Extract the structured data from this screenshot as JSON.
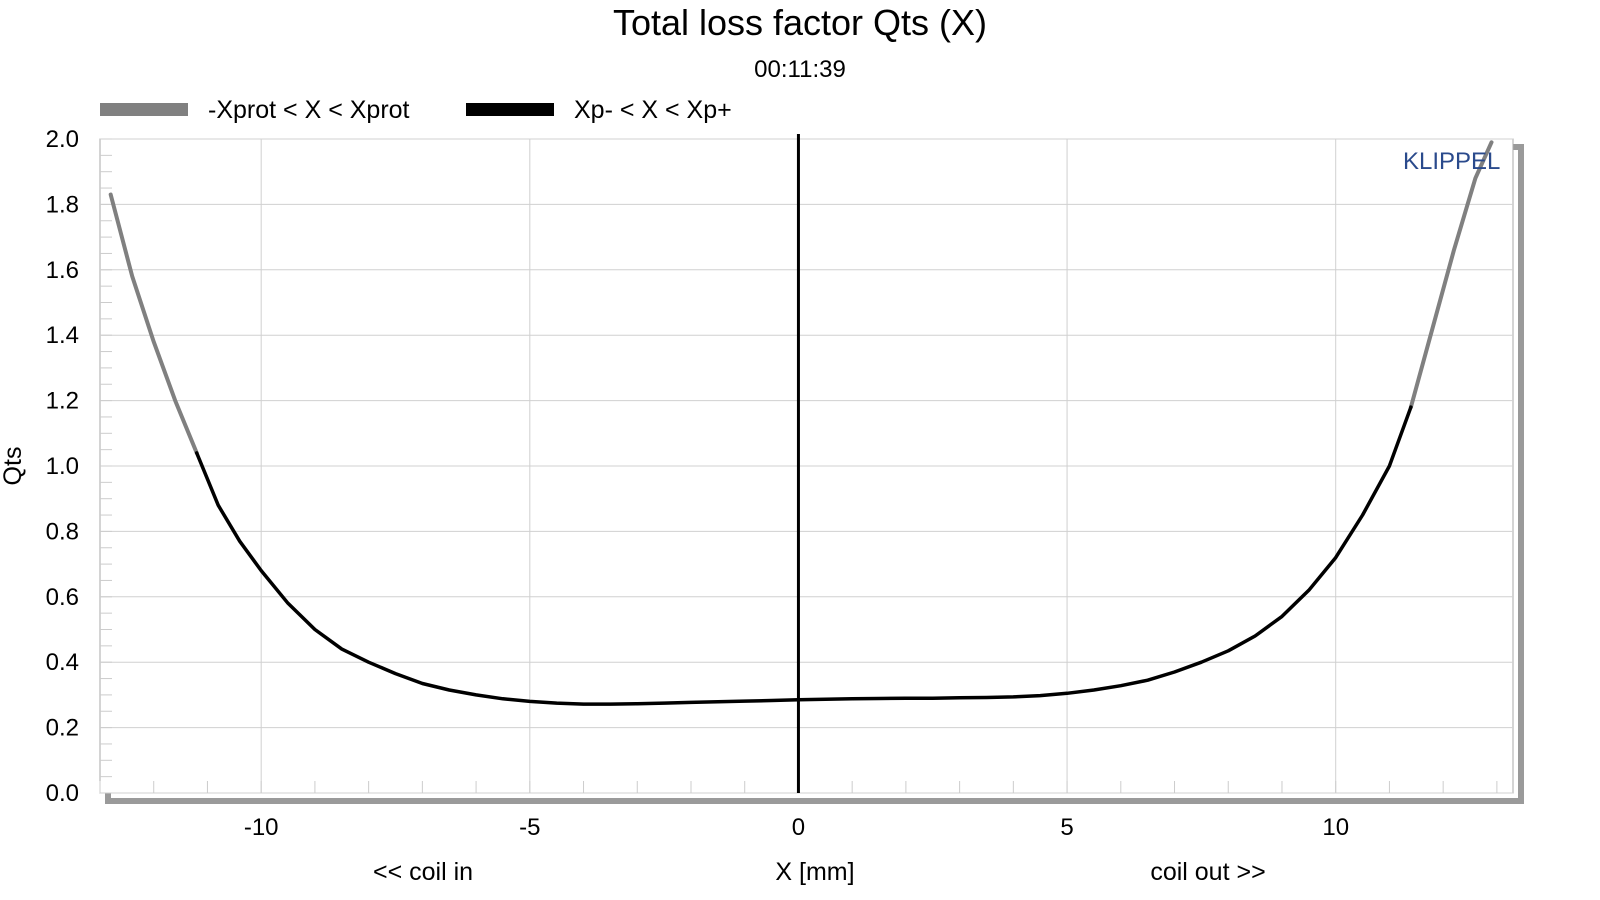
{
  "chart_data": {
    "type": "line",
    "title": "Total loss factor Qts (X)",
    "subtitle": "00:11:39",
    "xlabel": "X [mm]",
    "ylabel": "Qts",
    "x_annotation_left": "<< coil in",
    "x_annotation_right": "coil out >>",
    "watermark": "KLIPPEL",
    "xlim": [
      -13,
      13.3
    ],
    "ylim": [
      0,
      2
    ],
    "xticks": [
      -10,
      -5,
      0,
      5,
      10
    ],
    "yticks": [
      0.0,
      0.2,
      0.4,
      0.6,
      0.8,
      1.0,
      1.2,
      1.4,
      1.6,
      1.8,
      2.0
    ],
    "grid": true,
    "legend_position": "top-left",
    "zero_line_x": 0,
    "series": [
      {
        "name": "-Xprot < X < Xprot",
        "color": "#808080",
        "x": [
          -12.8,
          -12.4,
          -12.0,
          -11.6,
          -11.2,
          11.4,
          11.8,
          12.2,
          12.6,
          12.9
        ],
        "y": [
          1.83,
          1.58,
          1.38,
          1.2,
          1.04,
          1.18,
          1.42,
          1.66,
          1.88,
          1.99
        ]
      },
      {
        "name": "Xp- < X < Xp+",
        "color": "#000000",
        "x": [
          -11.2,
          -10.8,
          -10.4,
          -10.0,
          -9.5,
          -9.0,
          -8.5,
          -8.0,
          -7.5,
          -7.0,
          -6.5,
          -6.0,
          -5.5,
          -5.0,
          -4.5,
          -4.0,
          -3.5,
          -3.0,
          -2.5,
          -2.0,
          -1.5,
          -1.0,
          -0.5,
          0.0,
          0.5,
          1.0,
          1.5,
          2.0,
          2.5,
          3.0,
          3.5,
          4.0,
          4.5,
          5.0,
          5.5,
          6.0,
          6.5,
          7.0,
          7.5,
          8.0,
          8.5,
          9.0,
          9.5,
          10.0,
          10.5,
          11.0,
          11.4
        ],
        "y": [
          1.04,
          0.88,
          0.77,
          0.68,
          0.58,
          0.5,
          0.44,
          0.4,
          0.365,
          0.335,
          0.315,
          0.3,
          0.288,
          0.28,
          0.275,
          0.272,
          0.272,
          0.273,
          0.275,
          0.277,
          0.279,
          0.281,
          0.283,
          0.285,
          0.287,
          0.288,
          0.289,
          0.29,
          0.29,
          0.291,
          0.292,
          0.294,
          0.298,
          0.305,
          0.315,
          0.328,
          0.345,
          0.37,
          0.4,
          0.435,
          0.48,
          0.54,
          0.62,
          0.72,
          0.85,
          1.0,
          1.18
        ]
      }
    ]
  }
}
